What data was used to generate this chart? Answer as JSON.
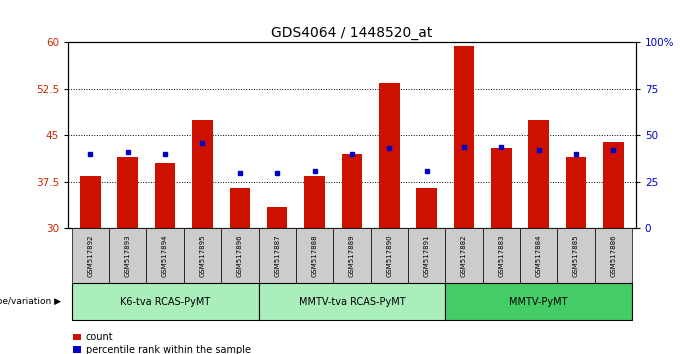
{
  "title": "GDS4064 / 1448520_at",
  "samples": [
    "GSM517892",
    "GSM517893",
    "GSM517894",
    "GSM517895",
    "GSM517896",
    "GSM517887",
    "GSM517888",
    "GSM517889",
    "GSM517890",
    "GSM517891",
    "GSM517882",
    "GSM517883",
    "GSM517884",
    "GSM517885",
    "GSM517886"
  ],
  "count_values": [
    38.5,
    41.5,
    40.5,
    47.5,
    36.5,
    33.5,
    38.5,
    42.0,
    53.5,
    36.5,
    59.5,
    43.0,
    47.5,
    41.5,
    44.0
  ],
  "percentile_pct": [
    40,
    41,
    40,
    46,
    30,
    30,
    31,
    40,
    43,
    31,
    44,
    44,
    42,
    40,
    42
  ],
  "baseline": 30,
  "ylim_left": [
    30,
    60
  ],
  "ylim_right": [
    0,
    100
  ],
  "yticks_left": [
    30,
    37.5,
    45,
    52.5,
    60
  ],
  "yticks_right": [
    0,
    25,
    50,
    75,
    100
  ],
  "ytick_labels_left": [
    "30",
    "37.5",
    "45",
    "52.5",
    "60"
  ],
  "ytick_labels_right": [
    "0",
    "25",
    "50",
    "75",
    "100%"
  ],
  "groups": [
    {
      "label": "K6-tva RCAS-PyMT",
      "start": 0,
      "end": 5,
      "color": "#AAEEBB"
    },
    {
      "label": "MMTV-tva RCAS-PyMT",
      "start": 5,
      "end": 10,
      "color": "#AAEEBB"
    },
    {
      "label": "MMTV-PyMT",
      "start": 10,
      "end": 15,
      "color": "#44CC66"
    }
  ],
  "bar_color": "#CC1100",
  "dot_color": "#0000CC",
  "tick_gray": "#888888",
  "left_tick_color": "#CC2200",
  "right_tick_color": "#0000CC",
  "sample_bg": "#CCCCCC",
  "plot_bg": "white"
}
